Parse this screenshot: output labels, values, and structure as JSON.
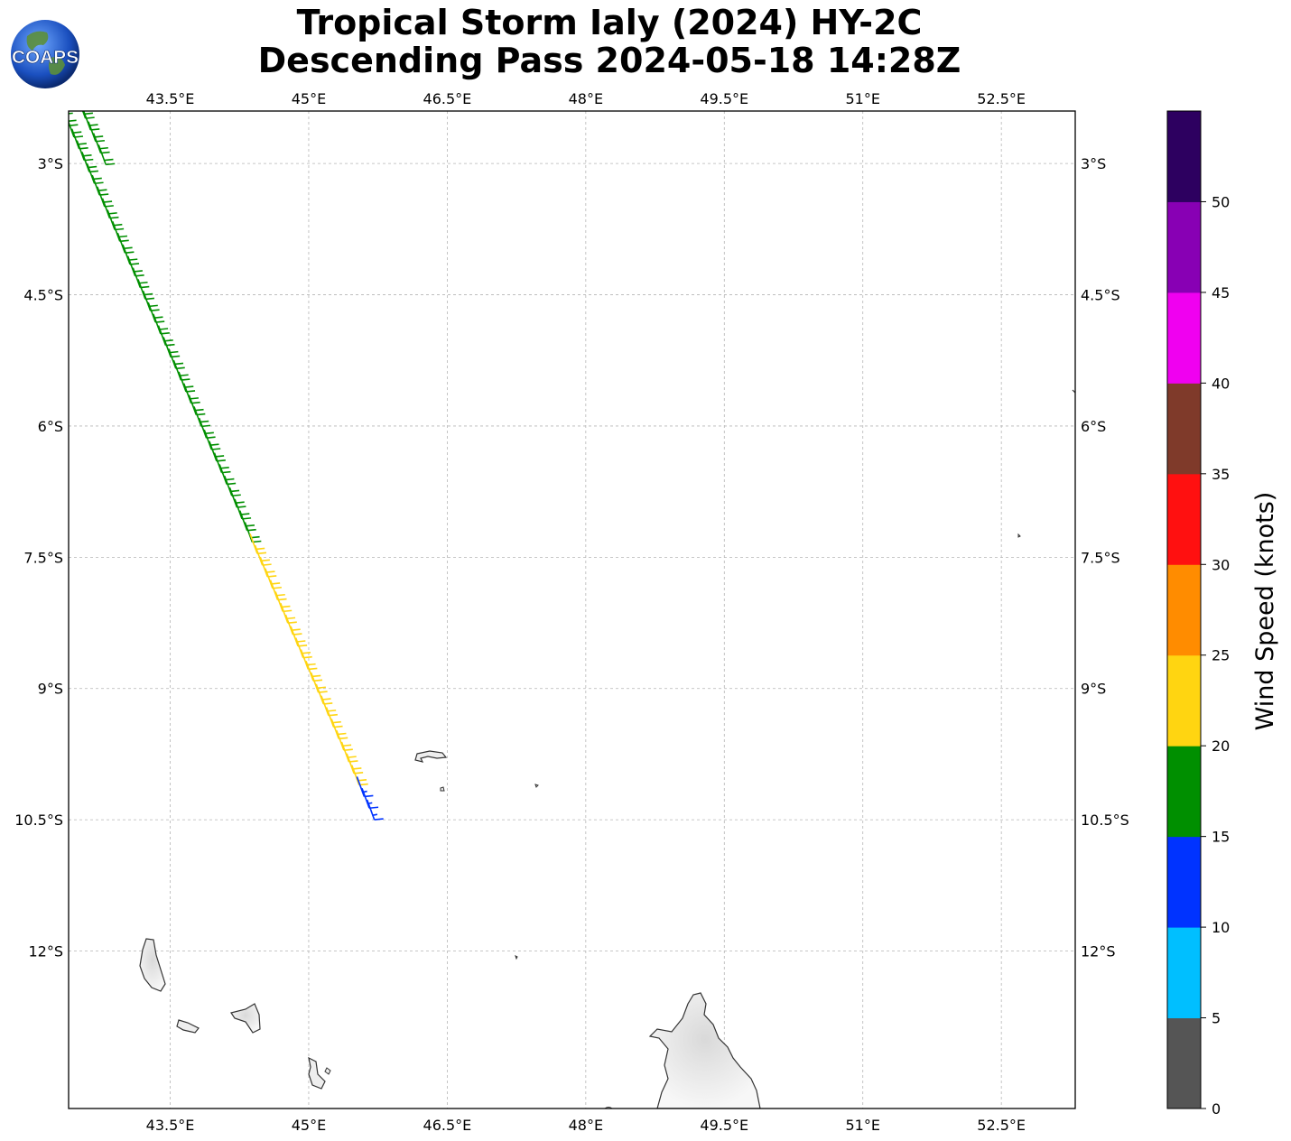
{
  "title": {
    "line1": "Tropical Storm Ialy (2024) HY-2C",
    "line2": "Descending Pass 2024-05-18 14:28Z"
  },
  "logo": {
    "text": "COAPS",
    "icon": "globe-logo-icon"
  },
  "map": {
    "lon_range": [
      42.4,
      53.3
    ],
    "lat_range": [
      -13.8,
      -2.4
    ],
    "lon_ticks": [
      "43.5°E",
      "45°E",
      "46.5°E",
      "48°E",
      "49.5°E",
      "51°E",
      "52.5°E"
    ],
    "lon_values": [
      43.5,
      45,
      46.5,
      48,
      49.5,
      51,
      52.5
    ],
    "lat_ticks": [
      "3°S",
      "4.5°S",
      "6°S",
      "7.5°S",
      "9°S",
      "10.5°S",
      "12°S"
    ],
    "lat_values": [
      -3,
      -4.5,
      -6,
      -7.5,
      -9,
      -10.5,
      -12
    ],
    "grid": true,
    "colors": {
      "land_fill": "#f2f2f2",
      "coast": "#333333",
      "grid": "#b5b5b5"
    }
  },
  "colorbar": {
    "label": "Wind Speed (knots)",
    "ticks": [
      "0",
      "5",
      "10",
      "15",
      "20",
      "25",
      "30",
      "35",
      "40",
      "45",
      "50"
    ],
    "colors": [
      "#555555",
      "#00bfff",
      "#0033ff",
      "#008f00",
      "#ffd511",
      "#ff8c00",
      "#ff1010",
      "#7f3a2a",
      "#f000f0",
      "#8800b4",
      "#2d0060"
    ]
  },
  "chart_data": {
    "type": "wind-barbs",
    "swath": "descending pass, winds mostly 15-20 kt (green) with 20-25 kt (yellow) band near 8-9°S and 10-15 kt (blue) toward the south-east edge",
    "dominant_direction": "south-easterly trade winds"
  }
}
